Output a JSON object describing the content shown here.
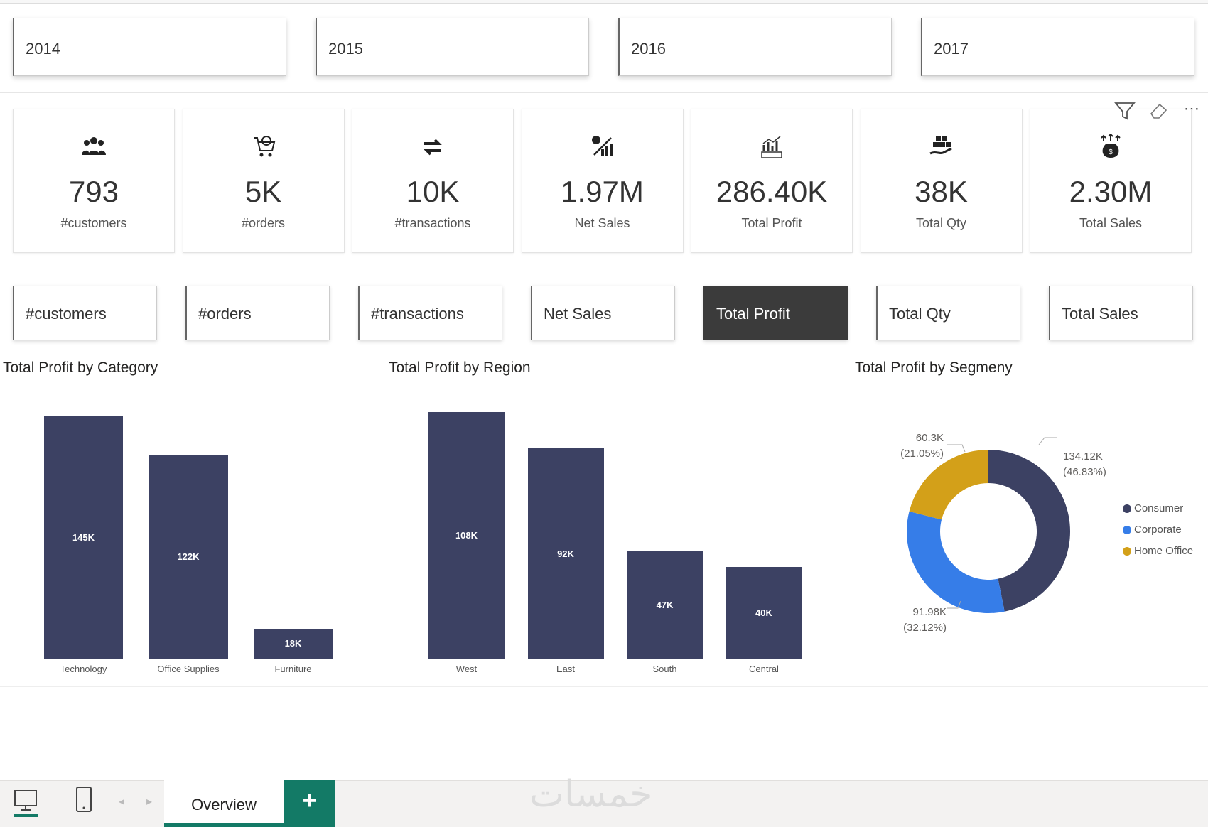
{
  "years": [
    "2014",
    "2015",
    "2016",
    "2017"
  ],
  "kpis": [
    {
      "icon": "people-icon",
      "value": "793",
      "label": "#customers"
    },
    {
      "icon": "shopping-cart-icon",
      "value": "5K",
      "label": "#orders"
    },
    {
      "icon": "exchange-arrows-icon",
      "value": "10K",
      "label": "#transactions"
    },
    {
      "icon": "sales-growth-icon",
      "value": "1.97M",
      "label": "Net Sales"
    },
    {
      "icon": "profit-chart-icon",
      "value": "286.40K",
      "label": "Total Profit"
    },
    {
      "icon": "boxes-hand-icon",
      "value": "38K",
      "label": "Total Qty"
    },
    {
      "icon": "money-bag-icon",
      "value": "2.30M",
      "label": "Total Sales"
    }
  ],
  "measure_buttons": [
    "#customers",
    "#orders",
    "#transactions",
    "Net Sales",
    "Total Profit",
    "Total Qty",
    "Total Sales"
  ],
  "selected_measure": "Total Profit",
  "colors": {
    "bar": "#3c4163",
    "consumer": "#3c4163",
    "corporate": "#367de8",
    "home_office": "#d3a019",
    "tab_accent": "#137a66"
  },
  "chart_data": [
    {
      "type": "bar",
      "title": "Total Profit by Category",
      "categories": [
        "Technology",
        "Office Supplies",
        "Furniture"
      ],
      "values": [
        145,
        122,
        18
      ],
      "labels": [
        "145K",
        "122K",
        "18K"
      ],
      "unit": "K"
    },
    {
      "type": "bar",
      "title": "Total Profit by Region",
      "categories": [
        "West",
        "East",
        "South",
        "Central"
      ],
      "values": [
        108,
        92,
        47,
        40
      ],
      "labels": [
        "108K",
        "92K",
        "47K",
        "40K"
      ],
      "unit": "K"
    },
    {
      "type": "pie",
      "title": "Total Profit by Segmeny",
      "categories": [
        "Consumer",
        "Corporate",
        "Home Office"
      ],
      "values": [
        134.12,
        91.98,
        60.3
      ],
      "value_labels": [
        "134.12K",
        "91.98K",
        "60.3K"
      ],
      "percent_labels": [
        "(46.83%)",
        "(32.12%)",
        "(21.05%)"
      ],
      "percents": [
        46.83,
        32.12,
        21.05
      ],
      "legend": "right"
    }
  ],
  "footer": {
    "tab": "Overview",
    "add": "+",
    "watermark": "خمسات"
  }
}
